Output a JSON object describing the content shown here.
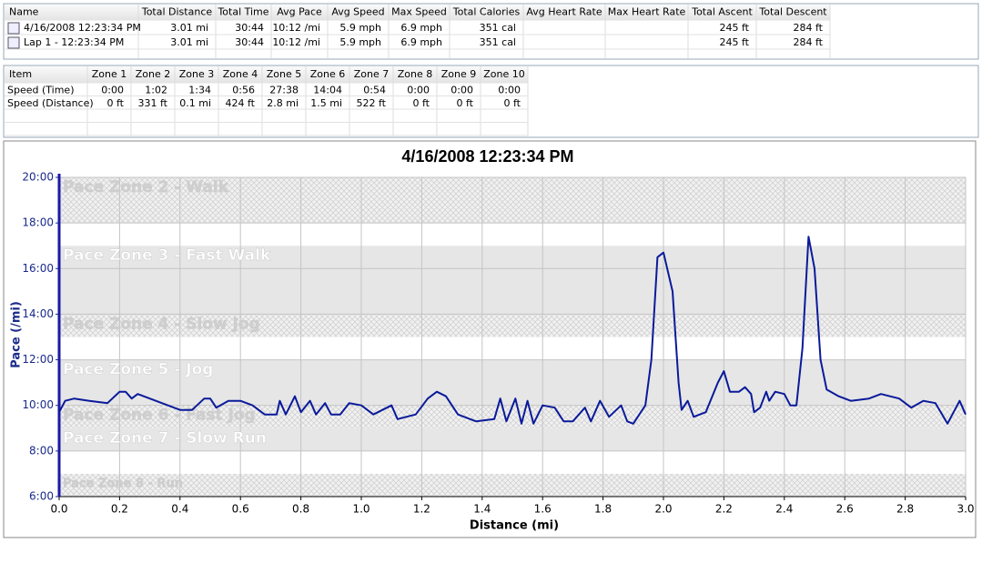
{
  "summary_table": {
    "columns": [
      "Name",
      "Total Distance",
      "Total Time",
      "Avg Pace",
      "Avg Speed",
      "Max Speed",
      "Total Calories",
      "Avg Heart Rate",
      "Max Heart Rate",
      "Total Ascent",
      "Total Descent"
    ],
    "rows": [
      [
        "4/16/2008 12:23:34 PM",
        "3.01 mi",
        "30:44",
        "10:12 /mi",
        "5.9 mph",
        "6.9 mph",
        "351 cal",
        null,
        null,
        "245 ft",
        "284 ft"
      ],
      [
        "Lap 1 - 12:23:34 PM",
        "3.01 mi",
        "30:44",
        "10:12 /mi",
        "5.9 mph",
        "6.9 mph",
        "351 cal",
        null,
        null,
        "245 ft",
        "284 ft"
      ]
    ]
  },
  "zones_table": {
    "columns": [
      "Item",
      "Zone 1",
      "Zone 2",
      "Zone 3",
      "Zone 4",
      "Zone 5",
      "Zone 6",
      "Zone 7",
      "Zone 8",
      "Zone 9",
      "Zone 10"
    ],
    "rows": [
      [
        "Speed (Time)",
        "0:00",
        "1:02",
        "1:34",
        "0:56",
        "27:38",
        "14:04",
        "0:54",
        "0:00",
        "0:00",
        "0:00"
      ],
      [
        "Speed (Distance)",
        "0 ft",
        "331 ft",
        "0.1 mi",
        "424 ft",
        "2.8 mi",
        "1.5 mi",
        "522 ft",
        "0 ft",
        "0 ft",
        "0 ft"
      ]
    ]
  },
  "chart_data": {
    "type": "line",
    "title": "4/16/2008 12:23:34 PM",
    "x_label": "Distance (mi)",
    "y_label": "Pace (/mi)",
    "xlim": [
      0,
      3.0
    ],
    "ylim": [
      6,
      20
    ],
    "xticks": [
      {
        "value": 0,
        "label": "0.0"
      },
      0.2,
      0.4,
      0.6,
      0.8,
      {
        "value": 1,
        "label": "1.0"
      },
      1.2,
      1.4,
      1.6,
      1.8,
      {
        "value": 2,
        "label": "2.0"
      },
      2.2,
      2.4,
      2.6,
      2.8,
      {
        "value": 3,
        "label": "3.0"
      }
    ],
    "yticks": [
      {
        "value": 6,
        "label": "6:00"
      },
      {
        "value": 8,
        "label": "8:00"
      },
      {
        "value": 10,
        "label": "10:00"
      },
      {
        "value": 12,
        "label": "12:00"
      },
      {
        "value": 14,
        "label": "14:00"
      },
      {
        "value": 16,
        "label": "16:00"
      },
      {
        "value": 18,
        "label": "18:00"
      },
      {
        "value": 20,
        "label": "20:00"
      }
    ],
    "grid": true,
    "zones": [
      {
        "name": "Pace Zone 2 - Walk",
        "from": 18,
        "to": 20,
        "style": "hatch"
      },
      {
        "name": "Pace Zone 3 - Fast Walk",
        "from": 14,
        "to": 17,
        "style": "solid"
      },
      {
        "name": "Pace Zone 4 - Slow Jog",
        "from": 13,
        "to": 14,
        "style": "hatch"
      },
      {
        "name": "Pace Zone 5 - Jog",
        "from": 10,
        "to": 12,
        "style": "solid"
      },
      {
        "name": "Pace Zone 6 - Fast Jog",
        "from": 9,
        "to": 10,
        "style": "hatch"
      },
      {
        "name": "Pace Zone 7 - Slow Run",
        "from": 8,
        "to": 9,
        "style": "solid"
      },
      {
        "name": "Pace Zone 8 - Run",
        "from": 6,
        "to": 7,
        "style": "hatch"
      }
    ],
    "series": [
      {
        "name": "Pace",
        "color": "#0a1a9a",
        "x": [
          0,
          0.02,
          0.05,
          0.1,
          0.16,
          0.2,
          0.22,
          0.24,
          0.26,
          0.3,
          0.36,
          0.4,
          0.44,
          0.48,
          0.5,
          0.52,
          0.56,
          0.6,
          0.64,
          0.68,
          0.72,
          0.73,
          0.75,
          0.78,
          0.8,
          0.83,
          0.85,
          0.88,
          0.9,
          0.93,
          0.96,
          1.0,
          1.04,
          1.1,
          1.12,
          1.18,
          1.22,
          1.25,
          1.28,
          1.32,
          1.38,
          1.44,
          1.46,
          1.48,
          1.51,
          1.53,
          1.55,
          1.57,
          1.6,
          1.64,
          1.67,
          1.7,
          1.74,
          1.76,
          1.79,
          1.82,
          1.86,
          1.88,
          1.9,
          1.94,
          1.96,
          1.98,
          2.0,
          2.03,
          2.05,
          2.06,
          2.08,
          2.1,
          2.14,
          2.18,
          2.2,
          2.22,
          2.25,
          2.27,
          2.29,
          2.3,
          2.32,
          2.34,
          2.35,
          2.37,
          2.4,
          2.42,
          2.44,
          2.46,
          2.48,
          2.5,
          2.52,
          2.54,
          2.58,
          2.62,
          2.68,
          2.72,
          2.78,
          2.82,
          2.86,
          2.9,
          2.94,
          2.98,
          3.0
        ],
        "values": [
          9.7,
          10.2,
          10.3,
          10.2,
          10.1,
          10.6,
          10.6,
          10.3,
          10.5,
          10.3,
          10.0,
          9.8,
          9.8,
          10.3,
          10.3,
          9.9,
          10.2,
          10.2,
          10.0,
          9.6,
          9.6,
          10.2,
          9.6,
          10.4,
          9.7,
          10.2,
          9.6,
          10.1,
          9.6,
          9.6,
          10.1,
          10.0,
          9.6,
          10.0,
          9.4,
          9.6,
          10.3,
          10.6,
          10.4,
          9.6,
          9.3,
          9.4,
          10.3,
          9.3,
          10.3,
          9.2,
          10.2,
          9.2,
          10.0,
          9.9,
          9.3,
          9.3,
          9.9,
          9.3,
          10.2,
          9.5,
          10.0,
          9.3,
          9.2,
          10.0,
          12.0,
          16.5,
          16.7,
          15.0,
          11.0,
          9.8,
          10.2,
          9.5,
          9.7,
          11.0,
          11.5,
          10.6,
          10.6,
          10.8,
          10.5,
          9.7,
          9.9,
          10.6,
          10.2,
          10.6,
          10.5,
          10.0,
          10.0,
          12.5,
          17.4,
          16.0,
          12.0,
          10.7,
          10.4,
          10.2,
          10.3,
          10.5,
          10.3,
          9.9,
          10.2,
          10.1,
          9.2,
          10.2,
          9.6
        ]
      }
    ]
  }
}
